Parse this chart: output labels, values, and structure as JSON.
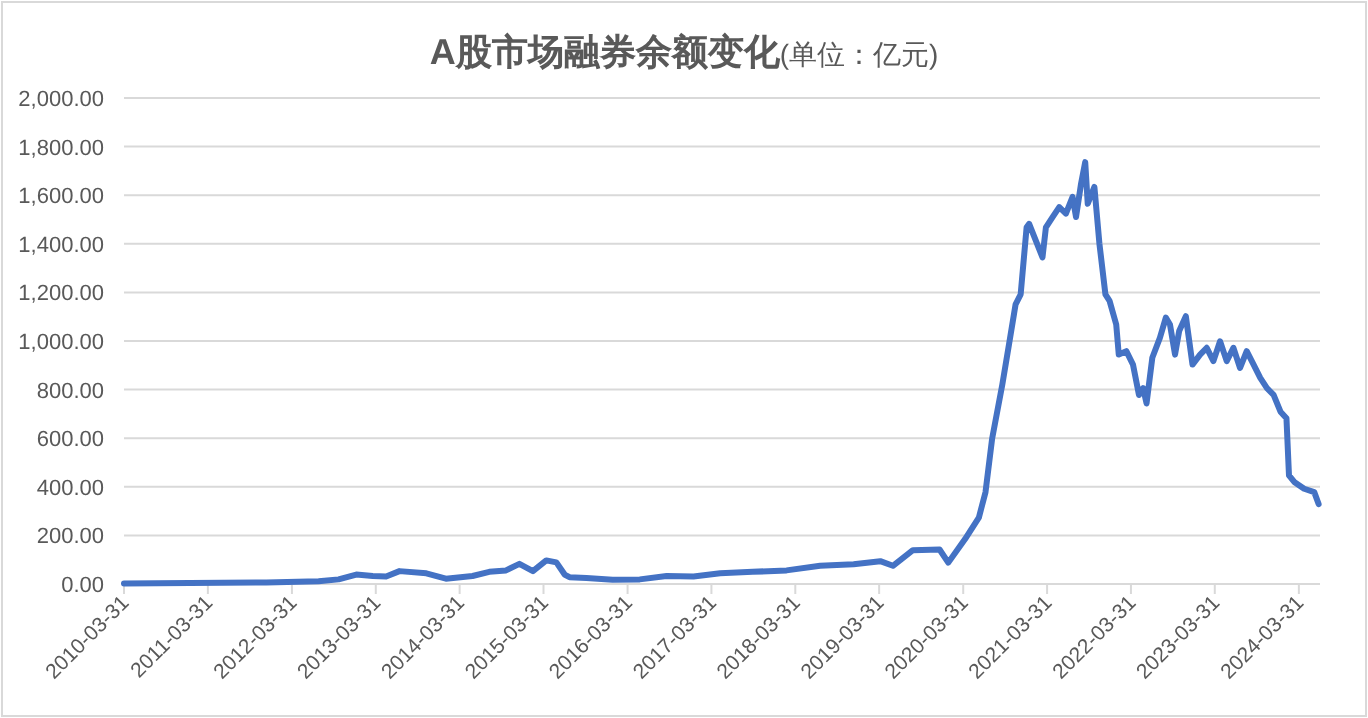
{
  "chart_data": {
    "type": "line",
    "title": "A股市场融券余额变化",
    "subtitle": "(单位：亿元)",
    "series": [
      {
        "color": "#4472c4",
        "x": [
          "2010-03-31",
          "2011-12-10",
          "2012-07-25",
          "2012-10-20",
          "2013-01-05",
          "2013-03-18",
          "2013-05-15",
          "2013-07-12",
          "2013-11-06",
          "2014-01-30",
          "2014-05-26",
          "2014-08-07",
          "2014-10-19",
          "2014-12-16",
          "2015-02-13",
          "2015-04-12",
          "2015-05-26",
          "2015-07-01",
          "2015-07-22",
          "2015-10-04",
          "2016-01-26",
          "2016-05-23",
          "2016-09-17",
          "2017-01-12",
          "2017-05-08",
          "2017-09-27",
          "2018-02-21",
          "2018-07-17",
          "2018-12-10",
          "2019-04-05",
          "2019-05-30",
          "2019-08-25",
          "2019-12-19",
          "2020-01-26",
          "2020-04-08",
          "2020-06-07",
          "2020-07-06",
          "2020-08-04",
          "2020-09-17",
          "2020-10-16",
          "2020-11-14",
          "2020-12-06",
          "2021-01-01",
          "2021-01-12",
          "2021-02-10",
          "2021-03-11",
          "2021-03-26",
          "2021-04-24",
          "2021-05-23",
          "2021-06-21",
          "2021-07-20",
          "2021-08-04",
          "2021-08-26",
          "2021-09-13",
          "2021-09-24",
          "2021-10-23",
          "2021-11-14",
          "2021-12-10",
          "2021-12-28",
          "2022-01-26",
          "2022-02-06",
          "2022-03-11",
          "2022-04-09",
          "2022-05-05",
          "2022-05-23",
          "2022-06-07",
          "2022-07-02",
          "2022-08-04",
          "2022-08-30",
          "2022-09-17",
          "2022-10-09",
          "2022-10-27",
          "2022-11-25",
          "2022-12-24",
          "2023-01-26",
          "2023-02-24",
          "2023-03-25",
          "2023-04-23",
          "2023-05-22",
          "2023-06-20",
          "2023-07-19",
          "2023-08-17",
          "2023-09-16",
          "2023-10-15",
          "2023-11-13",
          "2023-12-12",
          "2024-01-11",
          "2024-02-06",
          "2024-02-17",
          "2024-03-11",
          "2024-04-23",
          "2024-06-06",
          "2024-06-25"
        ],
        "values": [
          2,
          6,
          11,
          19,
          39,
          33,
          31,
          53,
          44,
          22,
          33,
          50,
          56,
          83,
          53,
          97,
          89,
          39,
          28,
          25,
          17,
          19,
          33,
          31,
          44,
          50,
          56,
          75,
          81,
          94,
          75,
          139,
          142,
          88,
          185,
          273,
          378,
          599,
          820,
          985,
          1151,
          1192,
          1468,
          1482,
          1413,
          1344,
          1468,
          1510,
          1551,
          1524,
          1593,
          1510,
          1648,
          1736,
          1565,
          1634,
          1399,
          1192,
          1165,
          1068,
          944,
          958,
          903,
          778,
          806,
          743,
          931,
          1013,
          1096,
          1068,
          944,
          1041,
          1102,
          903,
          944,
          972,
          917,
          999,
          917,
          972,
          889,
          958,
          903,
          848,
          806,
          778,
          709,
          682,
          447,
          420,
          392,
          378,
          329
        ]
      }
    ],
    "xlim": [
      "2010-03-31",
      "2024-07-01"
    ],
    "xticks": [
      "2010-03-31",
      "2011-03-31",
      "2012-03-31",
      "2013-03-31",
      "2014-03-31",
      "2015-03-31",
      "2016-03-31",
      "2017-03-31",
      "2018-03-31",
      "2019-03-31",
      "2020-03-31",
      "2021-03-31",
      "2022-03-31",
      "2023-03-31",
      "2024-03-31"
    ],
    "ylim": [
      0,
      2000
    ],
    "yticks": [
      {
        "value": 0,
        "label": "0.00"
      },
      {
        "value": 200,
        "label": "200.00"
      },
      {
        "value": 400,
        "label": "400.00"
      },
      {
        "value": 600,
        "label": "600.00"
      },
      {
        "value": 800,
        "label": "800.00"
      },
      {
        "value": 1000,
        "label": "1,000.00"
      },
      {
        "value": 1200,
        "label": "1,200.00"
      },
      {
        "value": 1400,
        "label": "1,400.00"
      },
      {
        "value": 1600,
        "label": "1,600.00"
      },
      {
        "value": 1800,
        "label": "1,800.00"
      },
      {
        "value": 2000,
        "label": "2,000.00"
      }
    ],
    "grid": "y",
    "line_style": "solid",
    "marker": "none"
  }
}
